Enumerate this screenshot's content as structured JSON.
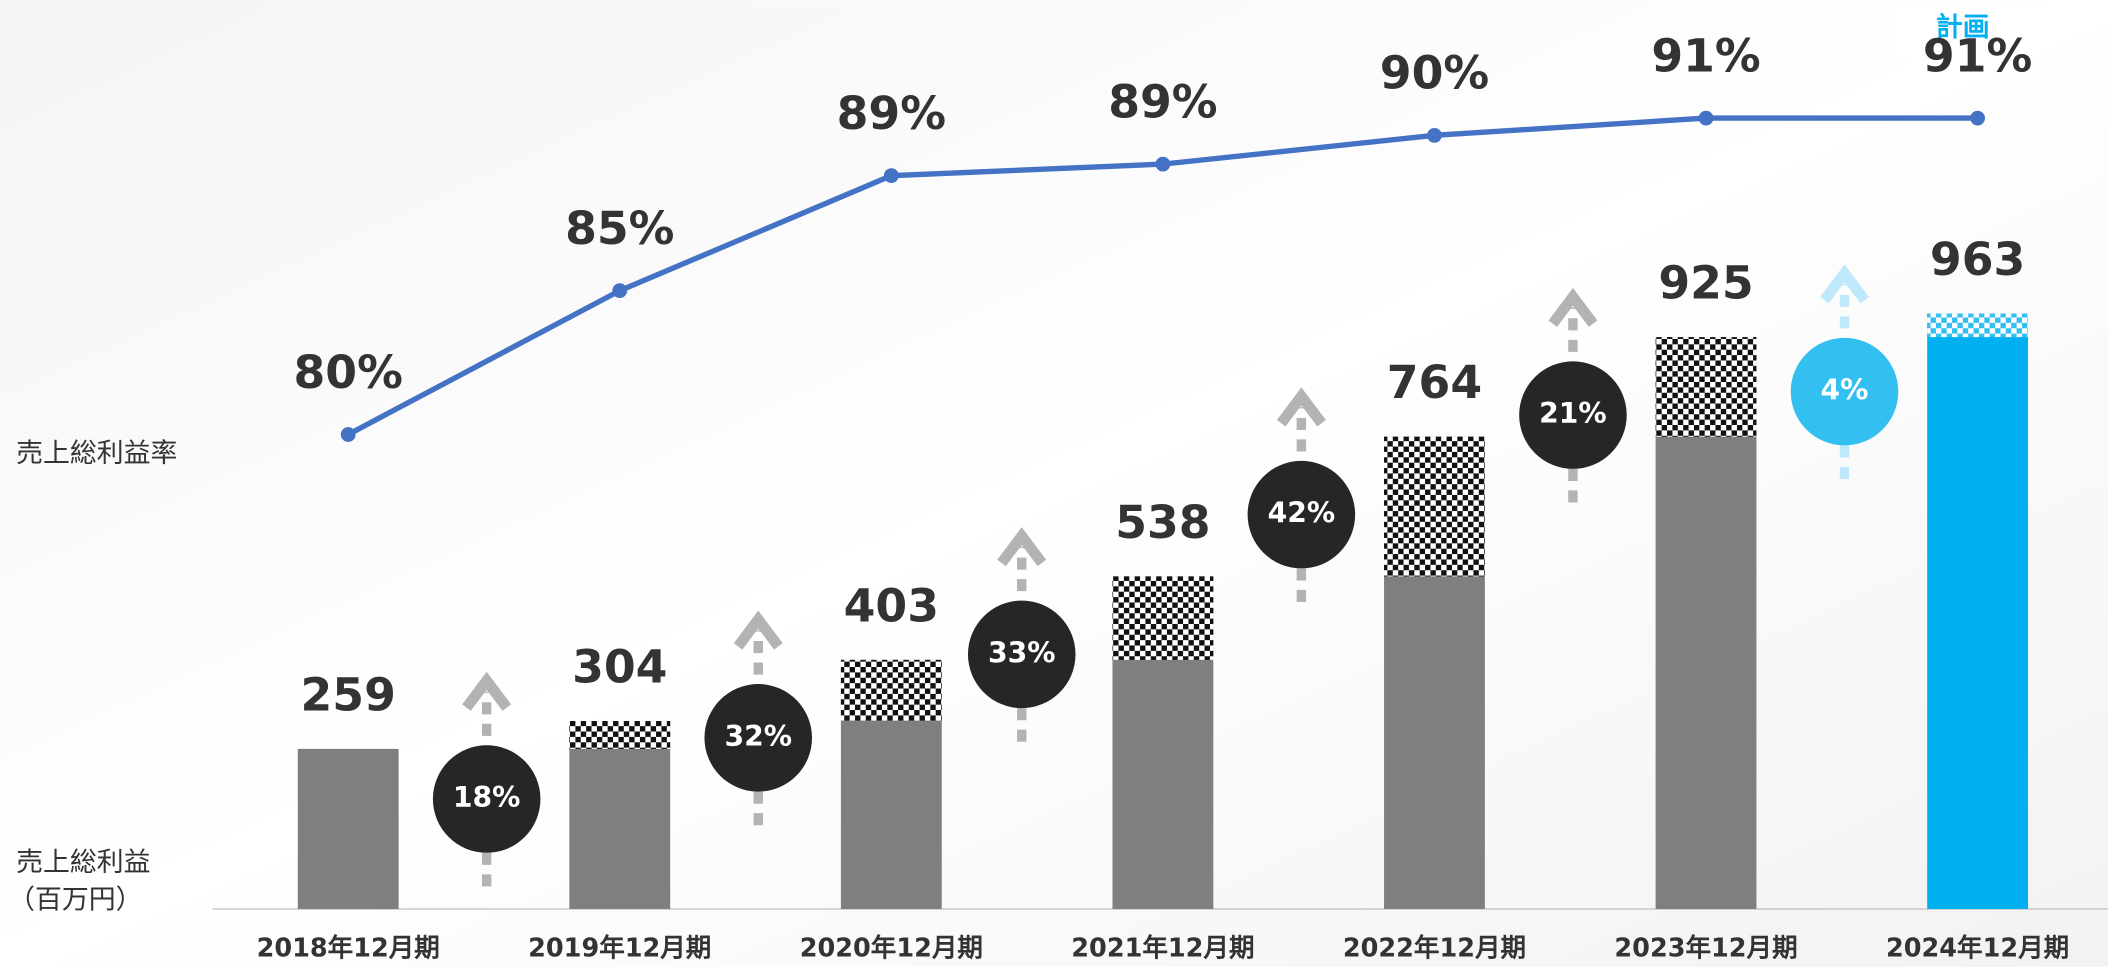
{
  "chart_data": {
    "type": "bar_line",
    "categories": [
      "2018年12月期",
      "2019年12月期",
      "2020年12月期",
      "2021年12月期",
      "2022年12月期",
      "2023年12月期",
      "2024年12月期"
    ],
    "series": [
      {
        "name": "売上総利益",
        "values": [
          259,
          304,
          403,
          538,
          764,
          925,
          963
        ],
        "colors": [
          "#7f7f7f",
          "#7f7f7f",
          "#7f7f7f",
          "#7f7f7f",
          "#7f7f7f",
          "#7f7f7f",
          "#00b0f0"
        ]
      },
      {
        "name": "売上総利益率",
        "axis": "y2",
        "color": "#4472c4",
        "values": [
          80,
          85,
          89,
          89.4,
          90.4,
          91,
          91
        ],
        "value_labels": [
          "80%",
          "85%",
          "89%",
          "89%",
          "90%",
          "91%",
          "91%"
        ]
      }
    ],
    "axis_label_bar": "売上総利益",
    "axis_label_bar_unit": "（百万円）",
    "growth": {
      "values": [
        18,
        32,
        33,
        42,
        21,
        4
      ],
      "value_labels": [
        "18%",
        "32%",
        "33%",
        "42%",
        "21%",
        "4%"
      ],
      "colors": [
        "#262626",
        "#262626",
        "#262626",
        "#262626",
        "#262626",
        "#33bff0"
      ]
    },
    "annotation": "計画",
    "ylim": [
      0,
      1470
    ],
    "y2lim": [
      63.5,
      95.1
    ]
  }
}
